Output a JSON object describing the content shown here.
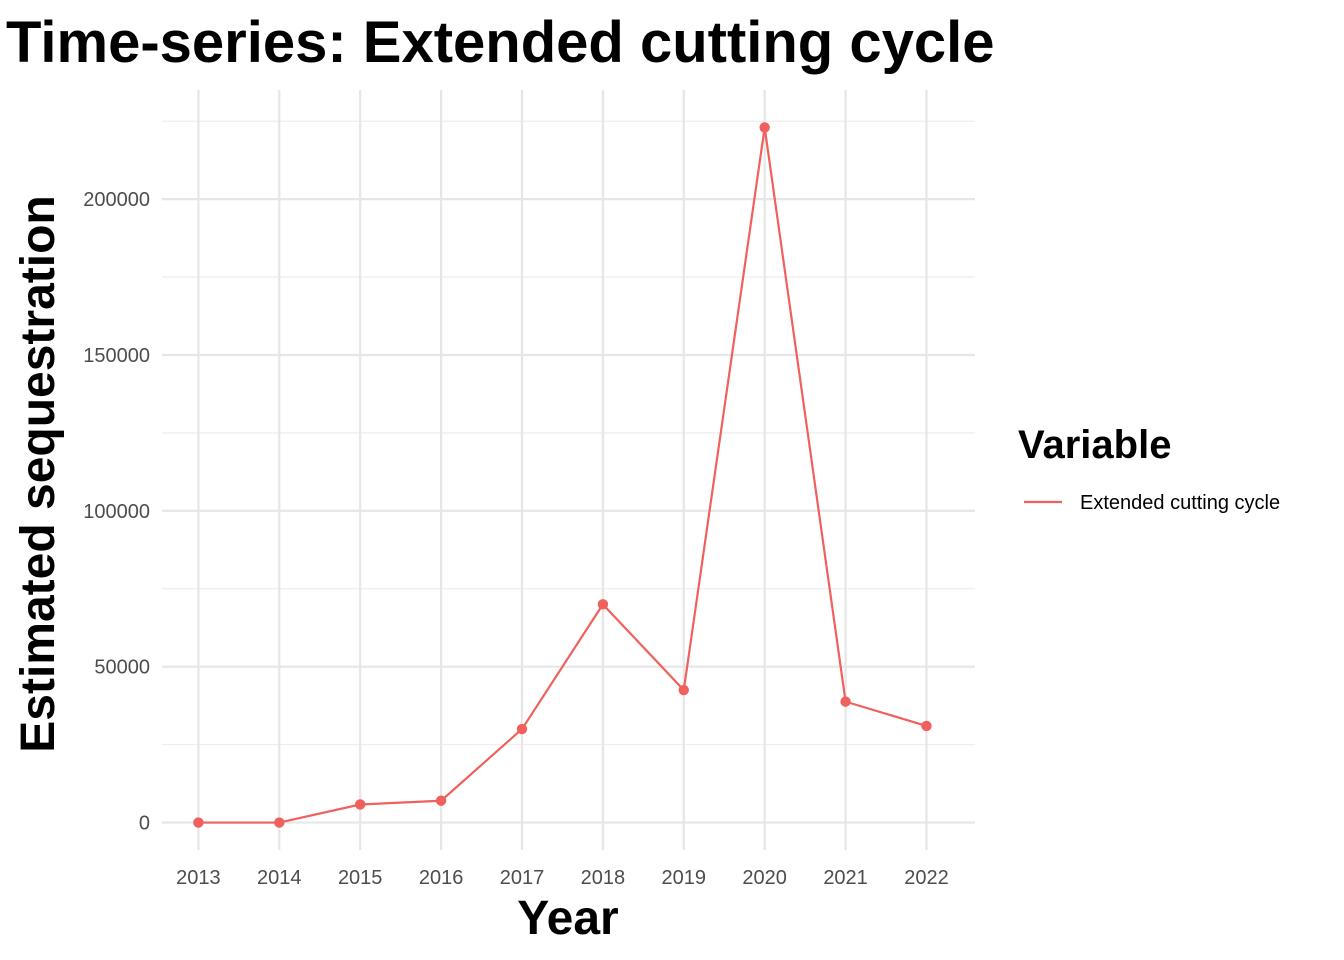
{
  "chart_data": {
    "type": "line",
    "title": "Time-series: Extended cutting cycle",
    "xlabel": "Year",
    "ylabel": "Estimated sequestration",
    "x": [
      2013,
      2014,
      2015,
      2016,
      2017,
      2018,
      2019,
      2020,
      2021,
      2022
    ],
    "series": [
      {
        "name": "Extended cutting cycle",
        "values": [
          0,
          0,
          5800,
          7000,
          30000,
          70000,
          42500,
          223000,
          38800,
          31000
        ],
        "color": "#f0605d"
      }
    ],
    "x_ticks": [
      "2013",
      "2014",
      "2015",
      "2016",
      "2017",
      "2018",
      "2019",
      "2020",
      "2021",
      "2022"
    ],
    "y_ticks": [
      "0",
      "50000",
      "100000",
      "150000",
      "200000"
    ],
    "y_tick_values": [
      0,
      50000,
      100000,
      150000,
      200000
    ],
    "ylim": [
      -8800,
      235000
    ],
    "xlim": [
      2012.55,
      2022.6
    ],
    "grid": true,
    "markers": true,
    "legend": {
      "title": "Variable",
      "placement": "right"
    }
  }
}
